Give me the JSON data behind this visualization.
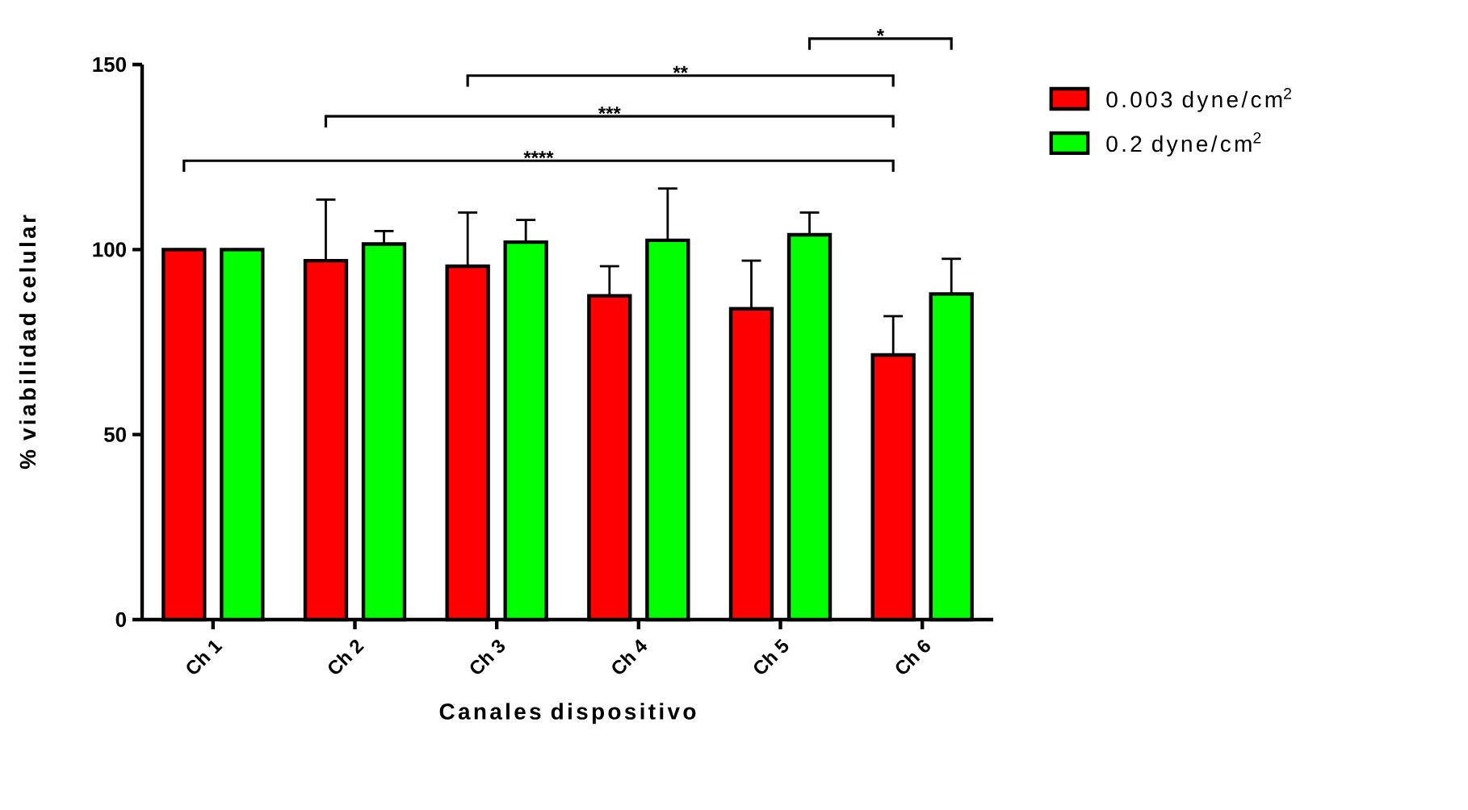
{
  "chart_data": {
    "type": "bar",
    "xlabel": "Canales dispositivo",
    "ylabel": "% viabilidad celular",
    "categories": [
      "Ch 1",
      "Ch 2",
      "Ch 3",
      "Ch 4",
      "Ch 5",
      "Ch 6"
    ],
    "series": [
      {
        "name": "0.003 dyne/cm$^{2}$",
        "color": "#ff0000",
        "values": [
          100,
          97,
          95.5,
          87.5,
          84,
          71.5
        ],
        "errors": [
          [
            100,
            100
          ],
          [
            97,
            113.5
          ],
          [
            95.5,
            110
          ],
          [
            87.5,
            95.5
          ],
          [
            84,
            97
          ],
          [
            71.5,
            82
          ]
        ]
      },
      {
        "name": "0.2 dyne/cm$^{2}$",
        "color": "#00ff00",
        "values": [
          100,
          101.5,
          102,
          102.5,
          104,
          88
        ],
        "errors": [
          [
            100,
            100
          ],
          [
            101.5,
            105
          ],
          [
            102,
            108
          ],
          [
            102.5,
            116.5
          ],
          [
            104,
            110
          ],
          [
            88,
            97.5
          ]
        ]
      }
    ],
    "ylim": [
      0,
      150
    ],
    "yticks": [
      0,
      50,
      100,
      150
    ],
    "grid": false,
    "legend": "top right",
    "annotations": [
      "****",
      "***",
      "**",
      "*"
    ]
  }
}
